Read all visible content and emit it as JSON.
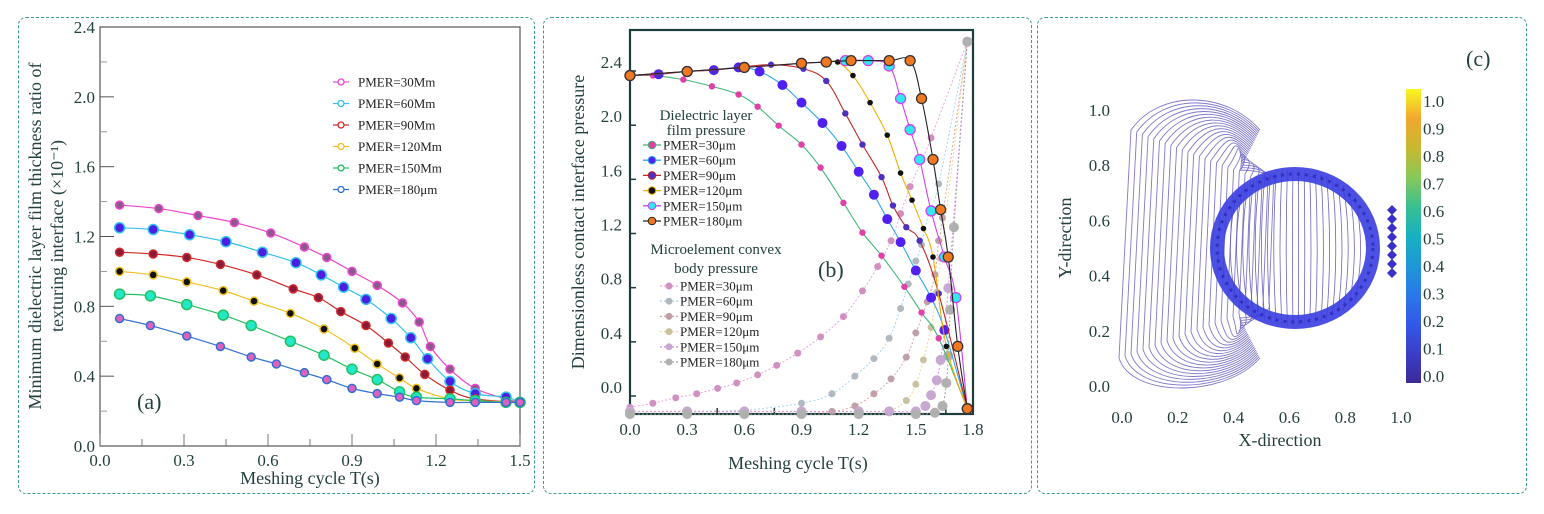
{
  "chart_data": [
    {
      "id": "a",
      "type": "line",
      "panel_label": "(a)",
      "title": "",
      "xlabel": "Meshing cycle T(s)",
      "ylabel_line1": "Minimum dielectric layer film thickness ratio of",
      "ylabel_line2": "texturing interface (×10⁻¹)",
      "xlim": [
        0.0,
        1.5
      ],
      "ylim": [
        0.0,
        2.4
      ],
      "xticks": [
        "0.0",
        "0.3",
        "0.6",
        "0.9",
        "1.2",
        "1.5"
      ],
      "xtick_values": [
        0.0,
        0.3,
        0.6,
        0.9,
        1.2,
        1.5
      ],
      "yticks": [
        "0.0",
        "0.4",
        "0.8",
        "1.2",
        "1.6",
        "2.0",
        "2.4"
      ],
      "ytick_values": [
        0.0,
        0.4,
        0.8,
        1.2,
        1.6,
        2.0,
        2.4
      ],
      "legend_position": "top-right",
      "grid": false,
      "series": [
        {
          "name": "PMER=30Mm",
          "color": "#ee44cc",
          "marker_fill": "#8a5a8a",
          "x": [
            0.07,
            0.21,
            0.35,
            0.48,
            0.61,
            0.73,
            0.81,
            0.9,
            0.99,
            1.08,
            1.14,
            1.18,
            1.25,
            1.34,
            1.45,
            1.5
          ],
          "y": [
            1.38,
            1.36,
            1.32,
            1.28,
            1.22,
            1.14,
            1.08,
            1.0,
            0.92,
            0.82,
            0.71,
            0.57,
            0.44,
            0.33,
            0.27,
            0.25
          ]
        },
        {
          "name": "PMER=60Mm",
          "color": "#33c0f0",
          "marker_fill": "#4b1ee0",
          "x": [
            0.07,
            0.19,
            0.32,
            0.45,
            0.58,
            0.7,
            0.79,
            0.87,
            0.95,
            1.04,
            1.11,
            1.17,
            1.25,
            1.34,
            1.45,
            1.5
          ],
          "y": [
            1.25,
            1.24,
            1.21,
            1.17,
            1.11,
            1.05,
            0.98,
            0.91,
            0.84,
            0.73,
            0.62,
            0.5,
            0.37,
            0.3,
            0.28,
            0.25
          ]
        },
        {
          "name": "PMER=90Mm",
          "color": "#d02828",
          "marker_fill": "#8a1a3a",
          "x": [
            0.07,
            0.19,
            0.31,
            0.43,
            0.56,
            0.69,
            0.78,
            0.86,
            0.95,
            1.03,
            1.09,
            1.16,
            1.25,
            1.34,
            1.5
          ],
          "y": [
            1.11,
            1.1,
            1.08,
            1.04,
            0.98,
            0.9,
            0.85,
            0.77,
            0.69,
            0.59,
            0.51,
            0.41,
            0.32,
            0.27,
            0.25
          ]
        },
        {
          "name": "PMER=120Mm",
          "color": "#f0c020",
          "marker_fill": "#111111",
          "x": [
            0.07,
            0.19,
            0.31,
            0.44,
            0.55,
            0.68,
            0.8,
            0.91,
            0.99,
            1.07,
            1.13,
            1.25,
            1.34,
            1.5
          ],
          "y": [
            1.0,
            0.98,
            0.94,
            0.89,
            0.83,
            0.76,
            0.67,
            0.56,
            0.47,
            0.39,
            0.33,
            0.27,
            0.26,
            0.25
          ]
        },
        {
          "name": "PMER=150Mm",
          "color": "#22c060",
          "marker_fill": "#22e8c8",
          "x": [
            0.07,
            0.18,
            0.31,
            0.44,
            0.54,
            0.68,
            0.8,
            0.9,
            0.99,
            1.07,
            1.13,
            1.25,
            1.34,
            1.45,
            1.5
          ],
          "y": [
            0.87,
            0.86,
            0.81,
            0.75,
            0.69,
            0.6,
            0.52,
            0.44,
            0.38,
            0.31,
            0.28,
            0.27,
            0.26,
            0.25,
            0.25
          ]
        },
        {
          "name": "PMER=180μm",
          "color": "#3070d0",
          "marker_fill": "#e060c0",
          "x": [
            0.07,
            0.18,
            0.31,
            0.43,
            0.54,
            0.63,
            0.73,
            0.81,
            0.9,
            0.99,
            1.07,
            1.13,
            1.25,
            1.34,
            1.45,
            1.5
          ],
          "y": [
            0.73,
            0.69,
            0.63,
            0.57,
            0.51,
            0.47,
            0.42,
            0.38,
            0.33,
            0.3,
            0.28,
            0.26,
            0.25,
            0.25,
            0.25,
            0.25
          ]
        }
      ]
    },
    {
      "id": "b",
      "type": "line",
      "panel_label": "(b)",
      "title": "",
      "xlabel": "Meshing cycle T(s)",
      "ylabel": "Dimensionless contact interface pressure",
      "xlim": [
        0.0,
        1.8
      ],
      "ylim": [
        -0.2,
        2.65
      ],
      "xticks": [
        "0.0",
        "0.3",
        "0.6",
        "0.9",
        "1.2",
        "1.5",
        "1.8"
      ],
      "xtick_values": [
        0.0,
        0.3,
        0.6,
        0.9,
        1.2,
        1.5,
        1.8
      ],
      "yticks": [
        "0.0",
        "0.4",
        "0.8",
        "1.2",
        "1.6",
        "2.0",
        "2.4"
      ],
      "ytick_values": [
        0.0,
        0.4,
        0.8,
        1.2,
        1.6,
        2.0,
        2.4
      ],
      "legend_position": "left",
      "legend_group_1_title_line1": "Dielectric layer",
      "legend_group_1_title_line2": "film pressure",
      "legend_group_2_title_line1": "Microelement convex",
      "legend_group_2_title_line2": "body pressure",
      "grid": false,
      "series": [
        {
          "group": "film",
          "name": "PMER=30μm",
          "color": "#40b878",
          "marker_fill": "#e040a8",
          "x": [
            0.0,
            0.12,
            0.28,
            0.43,
            0.57,
            0.67,
            0.78,
            0.9,
            1.0,
            1.12,
            1.22,
            1.32,
            1.44,
            1.53,
            1.62,
            1.77
          ],
          "y": [
            2.3,
            2.3,
            2.27,
            2.22,
            2.16,
            2.07,
            1.93,
            1.79,
            1.62,
            1.36,
            1.14,
            0.97,
            0.74,
            0.55,
            0.36,
            -0.16
          ]
        },
        {
          "group": "film",
          "name": "PMER=60μm",
          "color": "#30a8f0",
          "marker_fill": "#5020f0",
          "x": [
            0.0,
            0.15,
            0.3,
            0.44,
            0.57,
            0.68,
            0.8,
            0.9,
            1.01,
            1.11,
            1.2,
            1.28,
            1.35,
            1.42,
            1.5,
            1.58,
            1.65,
            1.77
          ],
          "y": [
            2.3,
            2.31,
            2.33,
            2.34,
            2.36,
            2.33,
            2.23,
            2.1,
            1.95,
            1.78,
            1.59,
            1.42,
            1.24,
            1.07,
            0.86,
            0.66,
            0.42,
            -0.16
          ]
        },
        {
          "group": "film",
          "name": "PMER=90μm",
          "color": "#c02828",
          "marker_fill": "#5030c0",
          "x": [
            0.0,
            0.15,
            0.3,
            0.44,
            0.57,
            0.74,
            0.91,
            1.03,
            1.13,
            1.22,
            1.32,
            1.38,
            1.45,
            1.52,
            1.62,
            1.77
          ],
          "y": [
            2.3,
            2.31,
            2.33,
            2.34,
            2.36,
            2.38,
            2.35,
            2.26,
            2.02,
            1.79,
            1.55,
            1.34,
            1.18,
            1.08,
            0.69,
            -0.16
          ]
        },
        {
          "group": "film",
          "name": "PMER=120μm",
          "color": "#f0b000",
          "marker_fill": "#111111",
          "x": [
            0.0,
            0.3,
            0.6,
            0.9,
            1.03,
            1.09,
            1.17,
            1.26,
            1.35,
            1.42,
            1.48,
            1.54,
            1.59,
            1.66,
            1.77
          ],
          "y": [
            2.3,
            2.33,
            2.36,
            2.39,
            2.4,
            2.4,
            2.3,
            2.1,
            1.86,
            1.58,
            1.38,
            1.17,
            0.96,
            0.3,
            -0.16
          ]
        },
        {
          "group": "film",
          "name": "PMER=150μm",
          "color": "#d040f0",
          "marker_fill": "#30e8f0",
          "x": [
            0.0,
            0.3,
            0.6,
            0.9,
            1.03,
            1.13,
            1.25,
            1.36,
            1.42,
            1.47,
            1.52,
            1.58,
            1.65,
            1.71,
            1.77
          ],
          "y": [
            2.3,
            2.33,
            2.36,
            2.39,
            2.4,
            2.41,
            2.41,
            2.37,
            2.13,
            1.9,
            1.68,
            1.3,
            0.96,
            0.66,
            -0.16
          ]
        },
        {
          "group": "film",
          "name": "PMER=180μm",
          "color": "#222222",
          "marker_fill": "#f07820",
          "x": [
            0.0,
            0.3,
            0.6,
            0.9,
            1.03,
            1.16,
            1.36,
            1.47,
            1.53,
            1.59,
            1.63,
            1.67,
            1.72,
            1.77
          ],
          "y": [
            2.3,
            2.33,
            2.36,
            2.39,
            2.4,
            2.41,
            2.41,
            2.41,
            2.13,
            1.68,
            1.31,
            0.96,
            0.3,
            -0.16
          ]
        },
        {
          "group": "body",
          "name": "PMER=30μm",
          "color": "#f0a0e0",
          "marker_fill": "#d090c0",
          "x": [
            0.0,
            0.12,
            0.24,
            0.35,
            0.46,
            0.56,
            0.67,
            0.77,
            0.88,
            1.0,
            1.12,
            1.22,
            1.3,
            1.37,
            1.42,
            1.47,
            1.53,
            1.58,
            1.77
          ],
          "y": [
            -0.15,
            -0.12,
            -0.08,
            -0.05,
            -0.01,
            0.03,
            0.09,
            0.16,
            0.25,
            0.37,
            0.52,
            0.71,
            0.89,
            1.08,
            1.28,
            1.48,
            1.67,
            1.84,
            2.55
          ]
        },
        {
          "group": "body",
          "name": "PMER=60μm",
          "color": "#a0d8f0",
          "marker_fill": "#b0b8c0",
          "x": [
            0.0,
            0.3,
            0.6,
            0.9,
            1.06,
            1.18,
            1.28,
            1.36,
            1.42,
            1.46,
            1.5,
            1.53,
            1.57,
            1.62,
            1.77
          ],
          "y": [
            -0.18,
            -0.18,
            -0.17,
            -0.12,
            -0.05,
            0.08,
            0.21,
            0.36,
            0.58,
            0.76,
            0.93,
            1.05,
            1.3,
            1.5,
            2.55
          ]
        },
        {
          "group": "body",
          "name": "PMER=90μm",
          "color": "#e0a0a0",
          "marker_fill": "#c0a0a8",
          "x": [
            0.0,
            0.3,
            0.6,
            0.9,
            1.06,
            1.18,
            1.28,
            1.37,
            1.45,
            1.5,
            1.56,
            1.6,
            1.62,
            1.64,
            1.77
          ],
          "y": [
            -0.18,
            -0.18,
            -0.18,
            -0.18,
            -0.18,
            -0.14,
            -0.05,
            0.06,
            0.22,
            0.4,
            0.63,
            0.83,
            1.08,
            1.25,
            2.55
          ]
        },
        {
          "group": "body",
          "name": "PMER=120μm",
          "color": "#f0d890",
          "marker_fill": "#c8c0a0",
          "x": [
            0.0,
            0.3,
            0.6,
            0.9,
            1.2,
            1.36,
            1.45,
            1.5,
            1.54,
            1.58,
            1.61,
            1.63,
            1.77
          ],
          "y": [
            -0.18,
            -0.18,
            -0.18,
            -0.18,
            -0.18,
            -0.17,
            -0.1,
            0.02,
            0.2,
            0.44,
            0.7,
            0.95,
            2.55
          ]
        },
        {
          "group": "body",
          "name": "PMER=150μm",
          "color": "#e090f0",
          "marker_fill": "#c8a8d0",
          "x": [
            0.0,
            0.3,
            0.6,
            0.9,
            1.2,
            1.36,
            1.5,
            1.55,
            1.58,
            1.61,
            1.63,
            1.65,
            1.67,
            1.77
          ],
          "y": [
            -0.18,
            -0.18,
            -0.18,
            -0.18,
            -0.18,
            -0.18,
            -0.18,
            -0.14,
            -0.06,
            0.05,
            0.2,
            0.42,
            0.73,
            2.55
          ]
        },
        {
          "group": "body",
          "name": "PMER=180μm",
          "color": "#a0a0a0",
          "marker_fill": "#b0b0b0",
          "x": [
            0.0,
            0.3,
            0.6,
            0.9,
            1.2,
            1.5,
            1.6,
            1.64,
            1.66,
            1.67,
            1.68,
            1.7,
            1.77
          ],
          "y": [
            -0.2,
            -0.2,
            -0.2,
            -0.2,
            -0.2,
            -0.2,
            -0.19,
            -0.14,
            0.03,
            0.23,
            0.57,
            1.18,
            2.55
          ]
        }
      ]
    },
    {
      "id": "c",
      "type": "contour",
      "panel_label": "(c)",
      "title": "",
      "xlabel": "X-direction",
      "ylabel": "Y-direction",
      "xlim": [
        0.0,
        1.0
      ],
      "ylim": [
        0.0,
        1.0
      ],
      "xticks": [
        "0.0",
        "0.2",
        "0.4",
        "0.6",
        "0.8",
        "1.0"
      ],
      "xtick_values": [
        0.0,
        0.2,
        0.4,
        0.6,
        0.8,
        1.0
      ],
      "yticks": [
        "0.0",
        "0.2",
        "0.4",
        "0.6",
        "0.8",
        "1.0"
      ],
      "ytick_values": [
        0.0,
        0.2,
        0.4,
        0.6,
        0.8,
        1.0
      ],
      "colorbar_ticks": [
        "0.0",
        "0.1",
        "0.2",
        "0.3",
        "0.4",
        "0.5",
        "0.6",
        "0.7",
        "0.8",
        "0.9",
        "1.0"
      ],
      "colorbar_values": [
        0.0,
        0.1,
        0.2,
        0.3,
        0.4,
        0.5,
        0.6,
        0.7,
        0.8,
        0.9,
        1.0
      ],
      "colorbar_colors": [
        "#3b2a98",
        "#3a3ec8",
        "#3358e8",
        "#2a78e8",
        "#1e98d8",
        "#18b0c0",
        "#38c090",
        "#88c858",
        "#c8b830",
        "#f0a830",
        "#f8f820"
      ],
      "contour_color": "#6a62c0",
      "ring_center": [
        0.62,
        0.5
      ],
      "ring_radii": [
        0.27,
        0.33
      ],
      "ring_color": "#3a3ee0",
      "grid": false
    }
  ]
}
